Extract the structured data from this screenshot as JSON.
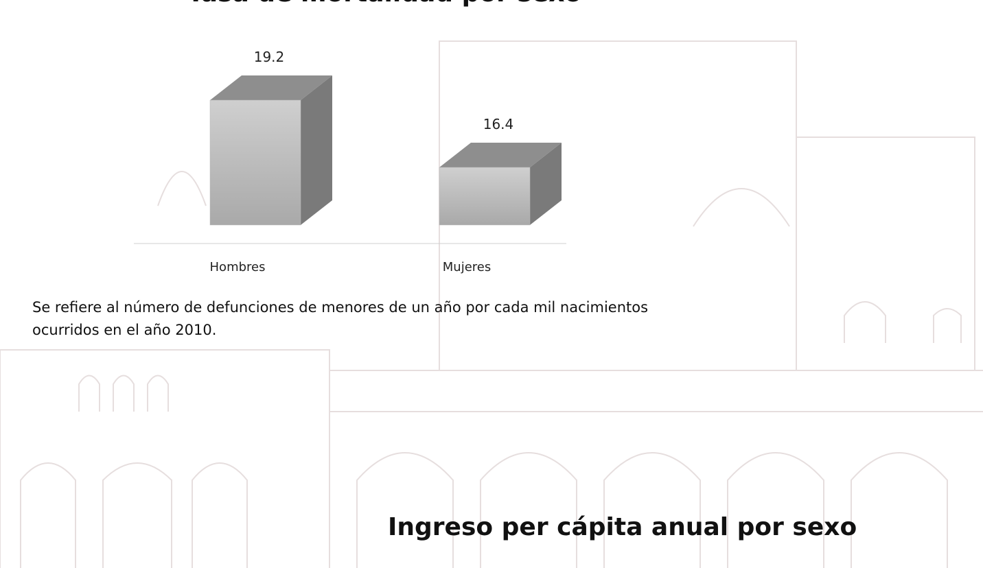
{
  "chart_data": {
    "type": "bar",
    "title": "Tasa de mortalidad por sexo",
    "categories": [
      "Hombres",
      "Mujeres"
    ],
    "values": [
      19.2,
      16.4
    ],
    "color": "#b8b8b8",
    "ylim": [
      14,
      20
    ]
  },
  "note": "Se refiere al número de defunciones de menores de un año por cada mil nacimientos ocurridos en el año 2010.",
  "next_title": "Ingreso per cápita anual por sexo"
}
